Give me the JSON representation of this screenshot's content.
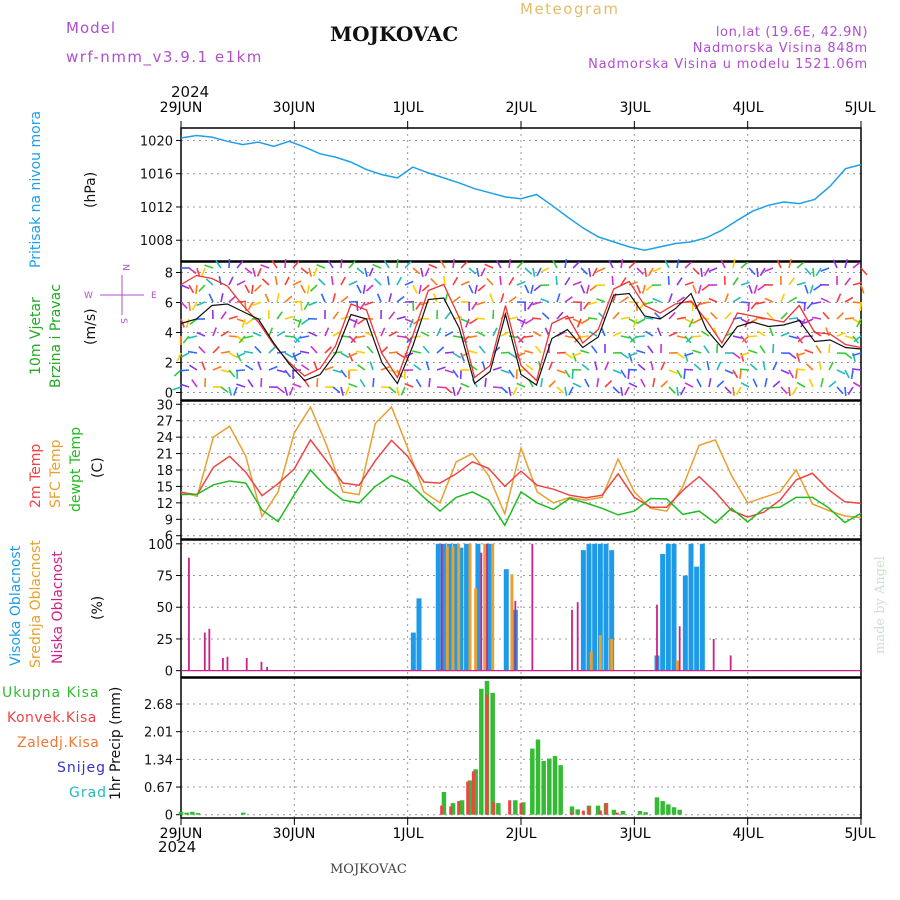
{
  "header": {
    "model_label": "Model",
    "model_name": "wrf-nmm_v3.9.1 e1km",
    "station": "MOJKOVAC",
    "meteogram": "Meteogram",
    "lonlat": "lon,lat (19.6E, 42.9N)",
    "elev": "Nadmorska Visina 848m",
    "elev_model": "Nadmorska Visina u modelu 1521.06m",
    "year_top": "2024",
    "year_bottom": "2024",
    "footer_station": "MOJKOVAC",
    "credit": "made by Angel"
  },
  "time_axis": [
    "29JUN",
    "30JUN",
    "1JUL",
    "2JUL",
    "3JUL",
    "4JUL",
    "5JUL"
  ],
  "panels": {
    "pressure": {
      "label1": "Pritisak na nivou mora",
      "unit": "(hPa)"
    },
    "wind": {
      "label1": "10m Vjetar",
      "label2": "Brzina i Pravac",
      "unit": "(m/s)",
      "compass_n": "N",
      "compass_s": "S",
      "compass_w": "W",
      "compass_e": "E"
    },
    "temp": {
      "label1": "2m Temp",
      "label2": "SFC Temp",
      "label3": "dewpt Temp",
      "unit": "(C)"
    },
    "cloud": {
      "label1": "Visoka Oblacnost",
      "label2": "Srednja Oblacnost",
      "label3": "Niska Oblacnost",
      "unit": "(%)"
    },
    "precip": {
      "legend": [
        "Ukupna Kisa",
        "Konvek.Kisa",
        "Zaledj.Kisa",
        "Snijeg",
        "Grad"
      ],
      "unit": "1hr Precip (mm)"
    }
  },
  "colors": {
    "pressure": "#1fa0e8",
    "wind_speed": "#111111",
    "wind_gust": "#ee3333",
    "temp2m": "#ee4444",
    "tempsfc": "#e8a030",
    "dewpt": "#22bb22",
    "cloud_high": "#1e9be8",
    "cloud_mid": "#e8a030",
    "cloud_low": "#cc2288",
    "rain_total": "#33bb33",
    "rain_conv": "#ee4444",
    "rain_frz": "#ee7733",
    "snow": "#3333cc",
    "hail": "#22bbbb"
  },
  "chart_data": [
    {
      "type": "line",
      "ylabel": "(hPa)",
      "yticks": [
        1008,
        1012,
        1016,
        1020
      ],
      "ylim": [
        1005.5,
        1021.5
      ],
      "series": [
        {
          "values": [
            1020.3,
            1020.6,
            1020.4,
            1019.9,
            1019.5,
            1019.8,
            1019.3,
            1019.9,
            1019.2,
            1018.4,
            1018.0,
            1017.4,
            1016.5,
            1015.9,
            1015.5,
            1016.8,
            1016.1,
            1015.5,
            1014.9,
            1014.2,
            1013.7,
            1013.2,
            1013.0,
            1013.5,
            1012.2,
            1010.8,
            1009.5,
            1008.4,
            1007.8,
            1007.2,
            1006.8,
            1007.2,
            1007.6,
            1007.8,
            1008.3,
            1009.2,
            1010.4,
            1011.5,
            1012.2,
            1012.6,
            1012.4,
            1012.9,
            1014.5,
            1016.6,
            1017.1
          ]
        }
      ]
    },
    {
      "type": "line",
      "ylabel": "(m/s)",
      "yticks": [
        0,
        2,
        4,
        6,
        8
      ],
      "ylim": [
        -0.5,
        8.7
      ],
      "series": [
        {
          "values": [
            4.6,
            4.9,
            5.8,
            5.9,
            5.4,
            4.9,
            3.3,
            1.9,
            0.8,
            1.2,
            2.6,
            5.2,
            4.9,
            2.0,
            0.6,
            3.1,
            6.2,
            6.3,
            4.3,
            0.6,
            1.4,
            5.2,
            1.2,
            0.5,
            3.6,
            4.2,
            3.0,
            3.7,
            6.5,
            6.6,
            5.1,
            4.9,
            5.6,
            6.6,
            4.2,
            3.0,
            4.4,
            4.7,
            4.4,
            4.5,
            4.8,
            3.4,
            3.5,
            3.0,
            2.9
          ]
        },
        {
          "values": [
            7.2,
            7.8,
            7.6,
            7.1,
            5.8,
            4.7,
            3.2,
            2.0,
            1.1,
            1.6,
            3.1,
            5.9,
            5.5,
            2.6,
            1.0,
            3.8,
            6.8,
            7.2,
            5.0,
            1.0,
            1.8,
            5.8,
            1.8,
            0.8,
            4.6,
            5.1,
            3.3,
            4.2,
            6.9,
            7.4,
            5.8,
            5.3,
            5.9,
            6.1,
            4.8,
            3.3,
            5.3,
            5.1,
            4.9,
            4.7,
            5.8,
            4.0,
            3.9,
            3.2,
            3.0
          ]
        }
      ]
    },
    {
      "type": "line",
      "ylabel": "(C)",
      "yticks": [
        6,
        9,
        12,
        15,
        18,
        21,
        24,
        27,
        30
      ],
      "ylim": [
        5.4,
        30.6
      ],
      "series": [
        {
          "values": [
            13.9,
            13.5,
            18.5,
            20.5,
            17.6,
            13.3,
            15.5,
            18.2,
            23.5,
            19.6,
            15.6,
            15.2,
            19.7,
            23.4,
            20.5,
            15.8,
            15.6,
            17.3,
            19.5,
            18.3,
            15.0,
            17.8,
            15.2,
            14.5,
            13.4,
            12.9,
            13.4,
            17.3,
            13.0,
            11.2,
            11.2,
            14.3,
            16.8,
            14.0,
            10.6,
            9.4,
            10.3,
            12.5,
            16.2,
            17.4,
            14.4,
            12.2,
            11.9
          ]
        },
        {
          "values": [
            14.0,
            13.2,
            24.0,
            26.0,
            20.5,
            9.5,
            14.0,
            24.8,
            29.5,
            22.5,
            14.0,
            13.5,
            26.5,
            29.5,
            22.0,
            14.0,
            12.0,
            19.5,
            21.0,
            17.0,
            10.0,
            22.0,
            14.0,
            12.0,
            13.0,
            12.5,
            13.0,
            20.0,
            14.0,
            11.0,
            10.5,
            15.0,
            22.5,
            23.5,
            17.0,
            12.0,
            13.0,
            14.0,
            18.0,
            11.8,
            10.6,
            9.6,
            9.3
          ]
        },
        {
          "values": [
            13.5,
            13.6,
            15.3,
            16.0,
            15.6,
            10.7,
            8.6,
            13.5,
            18.0,
            14.8,
            12.5,
            12.0,
            15.0,
            17.0,
            15.8,
            13.0,
            10.5,
            13.0,
            14.0,
            12.5,
            7.9,
            14.0,
            12.0,
            10.8,
            12.8,
            12.0,
            11.0,
            9.8,
            10.5,
            12.8,
            12.7,
            9.9,
            10.5,
            8.3,
            11.0,
            8.5,
            11.0,
            11.2,
            13.0,
            13.0,
            11.1,
            8.4,
            10.1
          ]
        }
      ]
    },
    {
      "type": "bar",
      "ylabel": "(%)",
      "yticks": [
        0,
        25,
        50,
        75,
        100
      ],
      "ylim": [
        -5,
        103
      ],
      "series": [
        {
          "name": "Visoka Oblacnost",
          "points": [
            [
              2.05,
              30
            ],
            [
              2.1,
              57
            ],
            [
              2.27,
              100
            ],
            [
              2.32,
              100
            ],
            [
              2.37,
              100
            ],
            [
              2.42,
              100
            ],
            [
              2.47,
              97
            ],
            [
              2.52,
              100
            ],
            [
              2.62,
              100
            ],
            [
              2.72,
              100
            ],
            [
              2.87,
              80
            ],
            [
              2.95,
              48
            ],
            [
              3.55,
              95
            ],
            [
              3.6,
              100
            ],
            [
              3.65,
              100
            ],
            [
              3.7,
              100
            ],
            [
              3.75,
              100
            ],
            [
              3.8,
              95
            ],
            [
              4.2,
              12
            ],
            [
              4.25,
              92
            ],
            [
              4.3,
              100
            ],
            [
              4.35,
              100
            ],
            [
              4.45,
              75
            ],
            [
              4.5,
              100
            ],
            [
              4.55,
              82
            ],
            [
              4.6,
              100
            ]
          ]
        },
        {
          "name": "Srednja Oblacnost",
          "points": [
            [
              2.35,
              98
            ],
            [
              2.4,
              98
            ],
            [
              2.45,
              100
            ],
            [
              2.55,
              100
            ],
            [
              2.6,
              65
            ],
            [
              2.68,
              100
            ],
            [
              2.75,
              100
            ],
            [
              2.92,
              76
            ],
            [
              3.62,
              15
            ],
            [
              3.7,
              28
            ],
            [
              3.8,
              25
            ],
            [
              4.38,
              8
            ]
          ]
        },
        {
          "name": "Niska Oblacnost",
          "points": [
            [
              0.07,
              89
            ],
            [
              0.21,
              30
            ],
            [
              0.25,
              33
            ],
            [
              0.37,
              10
            ],
            [
              0.41,
              11
            ],
            [
              0.58,
              10
            ],
            [
              0.71,
              7
            ],
            [
              0.76,
              3
            ],
            [
              2.3,
              100
            ],
            [
              2.65,
              93
            ],
            [
              2.7,
              100
            ],
            [
              2.95,
              55
            ],
            [
              3.1,
              100
            ],
            [
              3.45,
              48
            ],
            [
              3.5,
              54
            ],
            [
              4.2,
              52
            ],
            [
              4.4,
              35
            ],
            [
              4.7,
              25
            ],
            [
              4.85,
              12
            ]
          ]
        }
      ]
    },
    {
      "type": "bar",
      "ylabel": "1hr Precip (mm)",
      "yticks": [
        0,
        0.67,
        1.34,
        2.01,
        2.68
      ],
      "ylim": [
        -0.08,
        3.31
      ],
      "series": [
        {
          "name": "Ukupna Kisa",
          "points": [
            [
              0.0,
              0.07
            ],
            [
              0.05,
              0.05
            ],
            [
              0.1,
              0.07
            ],
            [
              0.15,
              0.04
            ],
            [
              0.55,
              0.05
            ],
            [
              2.32,
              0.55
            ],
            [
              2.4,
              0.28
            ],
            [
              2.48,
              0.35
            ],
            [
              2.55,
              0.83
            ],
            [
              2.6,
              1.1
            ],
            [
              2.65,
              3.05
            ],
            [
              2.7,
              3.24
            ],
            [
              2.75,
              2.95
            ],
            [
              2.8,
              0.28
            ],
            [
              2.95,
              0.35
            ],
            [
              3.02,
              0.3
            ],
            [
              3.1,
              1.6
            ],
            [
              3.15,
              1.82
            ],
            [
              3.2,
              1.3
            ],
            [
              3.25,
              1.36
            ],
            [
              3.3,
              1.42
            ],
            [
              3.35,
              1.2
            ],
            [
              3.45,
              0.2
            ],
            [
              3.5,
              0.13
            ],
            [
              3.6,
              0.22
            ],
            [
              3.68,
              0.22
            ],
            [
              3.75,
              0.28
            ],
            [
              3.82,
              0.12
            ],
            [
              3.9,
              0.09
            ],
            [
              4.05,
              0.09
            ],
            [
              4.1,
              0.06
            ],
            [
              4.2,
              0.42
            ],
            [
              4.25,
              0.33
            ],
            [
              4.3,
              0.25
            ],
            [
              4.35,
              0.18
            ],
            [
              4.4,
              0.12
            ]
          ]
        },
        {
          "name": "Konvek.Kisa",
          "points": [
            [
              2.3,
              0.22
            ],
            [
              2.38,
              0.2
            ],
            [
              2.45,
              0.33
            ],
            [
              2.53,
              0.8
            ],
            [
              2.58,
              1.05
            ],
            [
              2.7,
              2.9
            ],
            [
              2.76,
              0.3
            ],
            [
              2.9,
              0.35
            ],
            [
              3.0,
              0.28
            ],
            [
              3.45,
              0.06
            ],
            [
              3.55,
              0.1
            ],
            [
              3.6,
              0.2
            ],
            [
              3.7,
              0.1
            ],
            [
              3.75,
              0.28
            ],
            [
              3.85,
              0.05
            ]
          ]
        }
      ]
    }
  ]
}
